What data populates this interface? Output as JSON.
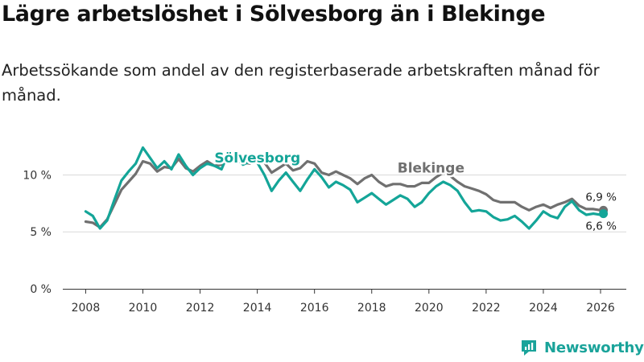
{
  "header": {
    "title": "Lägre arbetslöshet i Sölvesborg än i Blekinge",
    "subtitle": "Arbetssökande som andel av den registerbaserade arbetskraften månad för månad."
  },
  "brand": {
    "name": "Newsworthy",
    "icon": "newsworthy-logo-icon"
  },
  "colors": {
    "solvesborg": "#14a598",
    "blekinge": "#707070",
    "grid": "#d9d9d9",
    "axis": "#333333"
  },
  "chart_data": {
    "type": "line",
    "title": "Lägre arbetslöshet i Sölvesborg än i Blekinge",
    "subtitle": "Arbetssökande som andel av den registerbaserade arbetskraften månad för månad.",
    "xlabel": "",
    "ylabel": "",
    "xlim": [
      2007.2,
      2026.9
    ],
    "ylim": [
      0,
      13
    ],
    "grid": true,
    "x_ticks": [
      {
        "value": 2008,
        "label": "2008"
      },
      {
        "value": 2010,
        "label": "2010"
      },
      {
        "value": 2012,
        "label": "2012"
      },
      {
        "value": 2014,
        "label": "2014"
      },
      {
        "value": 2016,
        "label": "2016"
      },
      {
        "value": 2018,
        "label": "2018"
      },
      {
        "value": 2020,
        "label": "2020"
      },
      {
        "value": 2022,
        "label": "2022"
      },
      {
        "value": 2024,
        "label": "2024"
      },
      {
        "value": 2026,
        "label": "2026"
      }
    ],
    "y_ticks": [
      {
        "value": 0,
        "label": "0 %"
      },
      {
        "value": 5,
        "label": "5 %"
      },
      {
        "value": 10,
        "label": "10 %"
      }
    ],
    "series": [
      {
        "name": "Blekinge",
        "color": "#707070",
        "inline_label": "Blekinge",
        "end_label": "6,9 %",
        "points": [
          [
            2008.0,
            5.9
          ],
          [
            2008.25,
            5.8
          ],
          [
            2008.5,
            5.4
          ],
          [
            2008.75,
            6.1
          ],
          [
            2009.0,
            7.4
          ],
          [
            2009.25,
            8.7
          ],
          [
            2009.5,
            9.4
          ],
          [
            2009.75,
            10.1
          ],
          [
            2010.0,
            11.2
          ],
          [
            2010.25,
            11.0
          ],
          [
            2010.5,
            10.3
          ],
          [
            2010.75,
            10.7
          ],
          [
            2011.0,
            10.6
          ],
          [
            2011.25,
            11.4
          ],
          [
            2011.5,
            10.6
          ],
          [
            2011.75,
            10.3
          ],
          [
            2012.0,
            10.8
          ],
          [
            2012.25,
            11.2
          ],
          [
            2012.5,
            10.8
          ],
          [
            2012.75,
            10.9
          ],
          [
            2013.0,
            11.9
          ],
          [
            2013.25,
            11.4
          ],
          [
            2013.5,
            11.1
          ],
          [
            2013.75,
            11.0
          ],
          [
            2014.0,
            11.7
          ],
          [
            2014.25,
            11.1
          ],
          [
            2014.5,
            10.2
          ],
          [
            2014.75,
            10.6
          ],
          [
            2015.0,
            11.0
          ],
          [
            2015.25,
            10.4
          ],
          [
            2015.5,
            10.6
          ],
          [
            2015.75,
            11.2
          ],
          [
            2016.0,
            11.0
          ],
          [
            2016.25,
            10.2
          ],
          [
            2016.5,
            10.0
          ],
          [
            2016.75,
            10.3
          ],
          [
            2017.0,
            10.0
          ],
          [
            2017.25,
            9.7
          ],
          [
            2017.5,
            9.2
          ],
          [
            2017.75,
            9.7
          ],
          [
            2018.0,
            10.0
          ],
          [
            2018.25,
            9.4
          ],
          [
            2018.5,
            9.0
          ],
          [
            2018.75,
            9.2
          ],
          [
            2019.0,
            9.2
          ],
          [
            2019.25,
            9.0
          ],
          [
            2019.5,
            9.0
          ],
          [
            2019.75,
            9.3
          ],
          [
            2020.0,
            9.3
          ],
          [
            2020.25,
            9.8
          ],
          [
            2020.5,
            10.2
          ],
          [
            2020.75,
            9.9
          ],
          [
            2021.0,
            9.4
          ],
          [
            2021.25,
            9.0
          ],
          [
            2021.5,
            8.8
          ],
          [
            2021.75,
            8.6
          ],
          [
            2022.0,
            8.3
          ],
          [
            2022.25,
            7.8
          ],
          [
            2022.5,
            7.6
          ],
          [
            2022.75,
            7.6
          ],
          [
            2023.0,
            7.6
          ],
          [
            2023.25,
            7.2
          ],
          [
            2023.5,
            6.9
          ],
          [
            2023.75,
            7.2
          ],
          [
            2024.0,
            7.4
          ],
          [
            2024.25,
            7.1
          ],
          [
            2024.5,
            7.4
          ],
          [
            2024.75,
            7.6
          ],
          [
            2025.0,
            7.9
          ],
          [
            2025.25,
            7.3
          ],
          [
            2025.5,
            7.0
          ],
          [
            2025.75,
            7.0
          ],
          [
            2026.0,
            6.9
          ],
          [
            2026.1,
            6.9
          ]
        ]
      },
      {
        "name": "Sölvesborg",
        "color": "#14a598",
        "inline_label": "Sölvesborg",
        "end_label": "6,6 %",
        "points": [
          [
            2008.0,
            6.8
          ],
          [
            2008.25,
            6.4
          ],
          [
            2008.5,
            5.3
          ],
          [
            2008.75,
            6.0
          ],
          [
            2009.0,
            7.8
          ],
          [
            2009.25,
            9.5
          ],
          [
            2009.5,
            10.3
          ],
          [
            2009.75,
            11.0
          ],
          [
            2010.0,
            12.4
          ],
          [
            2010.25,
            11.5
          ],
          [
            2010.5,
            10.6
          ],
          [
            2010.75,
            11.2
          ],
          [
            2011.0,
            10.5
          ],
          [
            2011.25,
            11.8
          ],
          [
            2011.5,
            10.8
          ],
          [
            2011.75,
            10.0
          ],
          [
            2012.0,
            10.6
          ],
          [
            2012.25,
            11.0
          ],
          [
            2012.5,
            10.8
          ],
          [
            2012.75,
            10.5
          ],
          [
            2013.0,
            12.0
          ],
          [
            2013.25,
            11.5
          ],
          [
            2013.5,
            10.9
          ],
          [
            2013.75,
            11.2
          ],
          [
            2014.0,
            11.1
          ],
          [
            2014.25,
            10.0
          ],
          [
            2014.5,
            8.6
          ],
          [
            2014.75,
            9.5
          ],
          [
            2015.0,
            10.2
          ],
          [
            2015.25,
            9.4
          ],
          [
            2015.5,
            8.6
          ],
          [
            2015.75,
            9.6
          ],
          [
            2016.0,
            10.5
          ],
          [
            2016.25,
            9.8
          ],
          [
            2016.5,
            8.9
          ],
          [
            2016.75,
            9.4
          ],
          [
            2017.0,
            9.1
          ],
          [
            2017.25,
            8.7
          ],
          [
            2017.5,
            7.6
          ],
          [
            2017.75,
            8.0
          ],
          [
            2018.0,
            8.4
          ],
          [
            2018.25,
            7.9
          ],
          [
            2018.5,
            7.4
          ],
          [
            2018.75,
            7.8
          ],
          [
            2019.0,
            8.2
          ],
          [
            2019.25,
            7.9
          ],
          [
            2019.5,
            7.2
          ],
          [
            2019.75,
            7.6
          ],
          [
            2020.0,
            8.4
          ],
          [
            2020.25,
            9.0
          ],
          [
            2020.5,
            9.4
          ],
          [
            2020.75,
            9.1
          ],
          [
            2021.0,
            8.6
          ],
          [
            2021.25,
            7.6
          ],
          [
            2021.5,
            6.8
          ],
          [
            2021.75,
            6.9
          ],
          [
            2022.0,
            6.8
          ],
          [
            2022.25,
            6.3
          ],
          [
            2022.5,
            6.0
          ],
          [
            2022.75,
            6.1
          ],
          [
            2023.0,
            6.4
          ],
          [
            2023.25,
            5.9
          ],
          [
            2023.5,
            5.3
          ],
          [
            2023.75,
            6.0
          ],
          [
            2024.0,
            6.8
          ],
          [
            2024.25,
            6.4
          ],
          [
            2024.5,
            6.2
          ],
          [
            2024.75,
            7.2
          ],
          [
            2025.0,
            7.7
          ],
          [
            2025.25,
            6.9
          ],
          [
            2025.5,
            6.5
          ],
          [
            2025.75,
            6.6
          ],
          [
            2026.0,
            6.5
          ],
          [
            2026.1,
            6.6
          ]
        ]
      }
    ]
  }
}
